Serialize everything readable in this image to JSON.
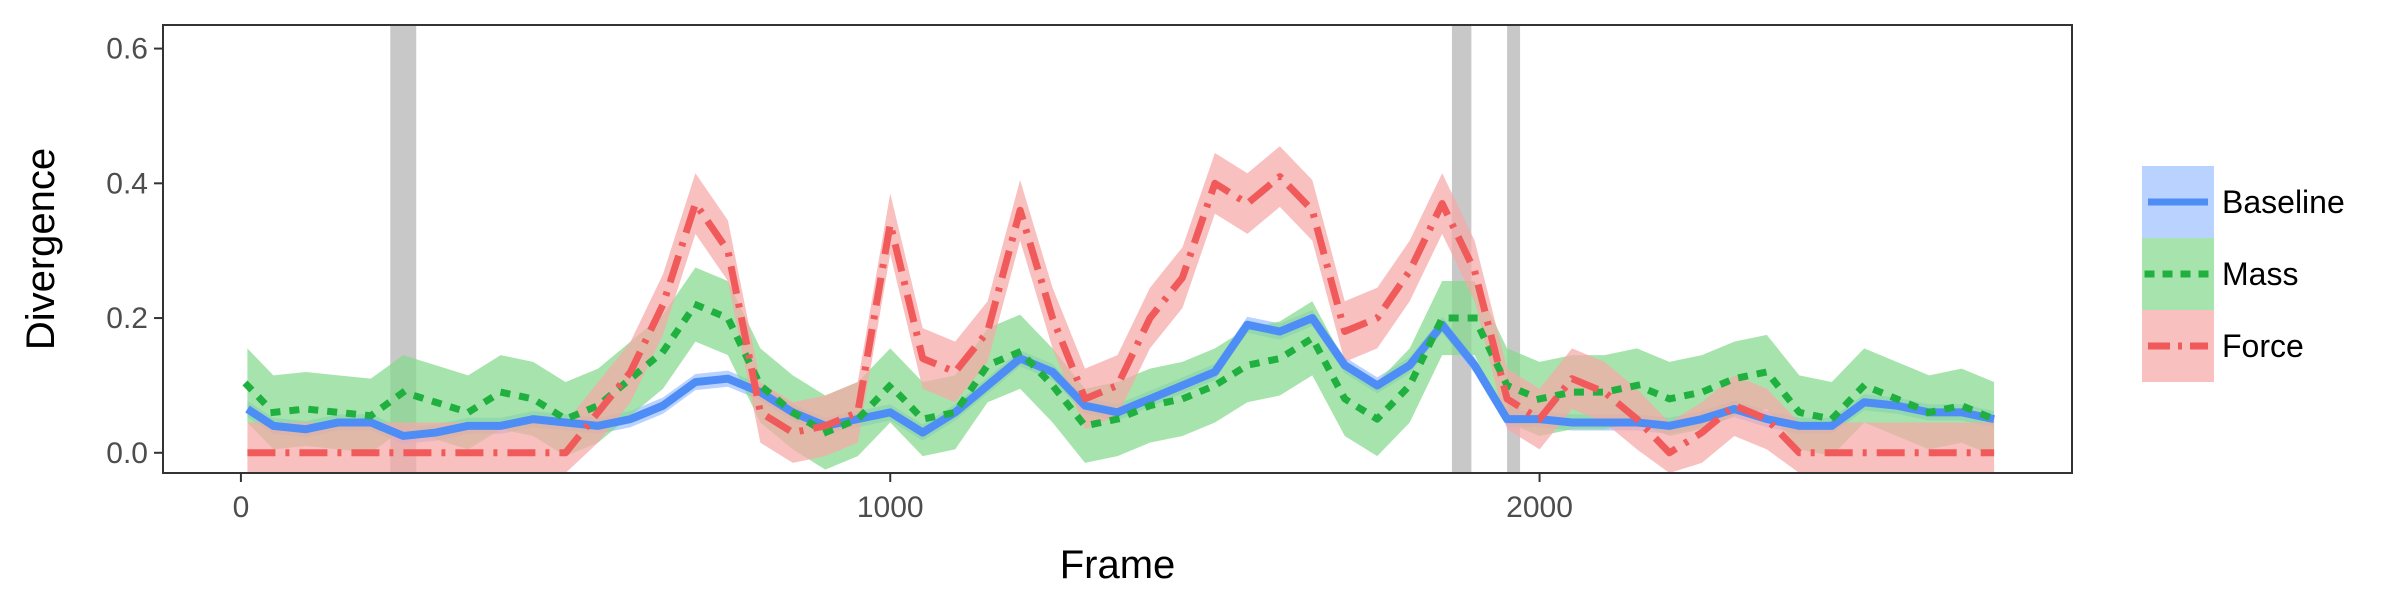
{
  "chart_data": {
    "type": "line",
    "title": "",
    "xlabel": "Frame",
    "ylabel": "Divergence",
    "xlim": [
      -120,
      2820
    ],
    "ylim": [
      -0.03,
      0.635
    ],
    "xticks": [
      0,
      1000,
      2000
    ],
    "xtick_labels": [
      "0",
      "1000",
      "2000"
    ],
    "yticks": [
      0.0,
      0.2,
      0.4,
      0.6
    ],
    "ytick_labels": [
      "0.0",
      "0.2",
      "0.4",
      "0.6"
    ],
    "grid": false,
    "legend_position": "right",
    "highlight_bands": [
      [
        230,
        270
      ],
      [
        1865,
        1895
      ],
      [
        1950,
        1970
      ]
    ],
    "highlight_color": "#c8c8c8",
    "series": [
      {
        "name": "Baseline",
        "color": "#4d8df5",
        "fill": "#9ec1ff",
        "linestyle": "solid",
        "x": [
          10,
          50,
          100,
          150,
          200,
          250,
          300,
          350,
          400,
          450,
          500,
          550,
          600,
          650,
          700,
          750,
          800,
          850,
          900,
          950,
          1000,
          1050,
          1100,
          1150,
          1200,
          1250,
          1300,
          1350,
          1400,
          1450,
          1500,
          1550,
          1600,
          1650,
          1700,
          1750,
          1800,
          1850,
          1900,
          1950,
          2000,
          2050,
          2100,
          2150,
          2200,
          2250,
          2300,
          2350,
          2400,
          2450,
          2500,
          2550,
          2600,
          2650,
          2700
        ],
        "y": [
          0.065,
          0.04,
          0.035,
          0.045,
          0.045,
          0.025,
          0.03,
          0.04,
          0.04,
          0.05,
          0.045,
          0.04,
          0.05,
          0.07,
          0.105,
          0.11,
          0.09,
          0.06,
          0.04,
          0.05,
          0.06,
          0.03,
          0.06,
          0.1,
          0.14,
          0.12,
          0.07,
          0.06,
          0.08,
          0.1,
          0.12,
          0.19,
          0.18,
          0.2,
          0.13,
          0.1,
          0.13,
          0.19,
          0.13,
          0.05,
          0.05,
          0.045,
          0.045,
          0.045,
          0.04,
          0.05,
          0.065,
          0.05,
          0.04,
          0.04,
          0.075,
          0.07,
          0.06,
          0.06,
          0.05
        ],
        "band": 0.012
      },
      {
        "name": "Mass",
        "color": "#20b040",
        "fill": "#85d98e",
        "linestyle": "dotted",
        "x": [
          10,
          50,
          100,
          150,
          200,
          250,
          300,
          350,
          400,
          450,
          500,
          550,
          600,
          650,
          700,
          750,
          800,
          850,
          900,
          950,
          1000,
          1050,
          1100,
          1150,
          1200,
          1250,
          1300,
          1350,
          1400,
          1450,
          1500,
          1550,
          1600,
          1650,
          1700,
          1750,
          1800,
          1850,
          1900,
          1950,
          2000,
          2050,
          2100,
          2150,
          2200,
          2250,
          2300,
          2350,
          2400,
          2450,
          2500,
          2550,
          2600,
          2650,
          2700
        ],
        "y": [
          0.1,
          0.06,
          0.065,
          0.06,
          0.055,
          0.09,
          0.075,
          0.06,
          0.09,
          0.08,
          0.05,
          0.07,
          0.11,
          0.15,
          0.22,
          0.2,
          0.1,
          0.06,
          0.03,
          0.05,
          0.1,
          0.05,
          0.06,
          0.13,
          0.15,
          0.1,
          0.04,
          0.05,
          0.07,
          0.08,
          0.1,
          0.13,
          0.14,
          0.17,
          0.08,
          0.05,
          0.1,
          0.2,
          0.2,
          0.1,
          0.08,
          0.09,
          0.09,
          0.1,
          0.08,
          0.09,
          0.11,
          0.12,
          0.06,
          0.05,
          0.1,
          0.08,
          0.06,
          0.07,
          0.05
        ],
        "band": 0.055
      },
      {
        "name": "Force",
        "color": "#f05a5a",
        "fill": "#f7a8a8",
        "linestyle": "dashdot",
        "x": [
          10,
          50,
          100,
          150,
          200,
          250,
          300,
          350,
          400,
          450,
          500,
          550,
          600,
          650,
          700,
          750,
          800,
          850,
          900,
          950,
          1000,
          1050,
          1100,
          1150,
          1200,
          1250,
          1300,
          1350,
          1400,
          1450,
          1500,
          1550,
          1600,
          1650,
          1700,
          1750,
          1800,
          1850,
          1900,
          1950,
          2000,
          2050,
          2100,
          2150,
          2200,
          2250,
          2300,
          2350,
          2400,
          2450,
          2500,
          2550,
          2600,
          2650,
          2700
        ],
        "y": [
          0.0,
          0.0,
          0.0,
          0.0,
          0.0,
          0.0,
          0.0,
          0.0,
          0.0,
          0.0,
          0.0,
          0.06,
          0.12,
          0.22,
          0.37,
          0.3,
          0.06,
          0.03,
          0.04,
          0.06,
          0.34,
          0.14,
          0.12,
          0.18,
          0.36,
          0.2,
          0.08,
          0.1,
          0.2,
          0.26,
          0.4,
          0.37,
          0.41,
          0.36,
          0.18,
          0.2,
          0.27,
          0.37,
          0.27,
          0.08,
          0.05,
          0.11,
          0.09,
          0.05,
          0.0,
          0.03,
          0.07,
          0.05,
          0.0,
          0.0,
          0.0,
          0.0,
          0.0,
          0.0,
          0.0
        ],
        "band": 0.045
      }
    ]
  }
}
